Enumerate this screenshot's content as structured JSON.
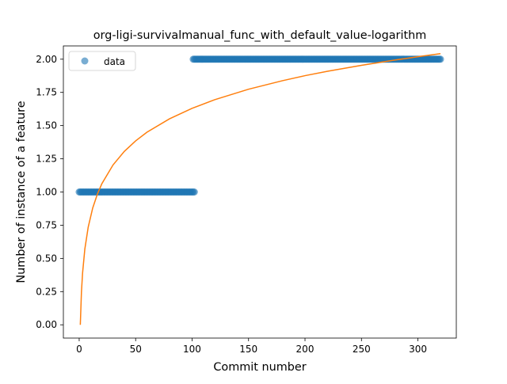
{
  "chart_data": {
    "type": "scatter",
    "title": "org-ligi-survivalmanual_func_with_default_value-logarithm",
    "xlabel": "Commit number",
    "ylabel": "Number of instance of a feature",
    "xlim": [
      -14,
      334
    ],
    "ylim": [
      -0.1,
      2.1
    ],
    "x_ticks": [
      0,
      50,
      100,
      150,
      200,
      250,
      300
    ],
    "y_ticks": [
      0.0,
      0.25,
      0.5,
      0.75,
      1.0,
      1.25,
      1.5,
      1.75,
      2.0
    ],
    "x_tick_labels": [
      "0",
      "50",
      "100",
      "150",
      "200",
      "250",
      "300"
    ],
    "y_tick_labels": [
      "0.00",
      "0.25",
      "0.50",
      "0.75",
      "1.00",
      "1.25",
      "1.50",
      "1.75",
      "2.00"
    ],
    "grid": false,
    "legend": {
      "placement": "top-left",
      "entries": [
        "data"
      ]
    },
    "series": [
      {
        "name": "data",
        "kind": "scatter",
        "color": "#1f77b4",
        "segments": [
          {
            "x_start": 0,
            "x_end": 102,
            "y": 1
          },
          {
            "x_start": 101,
            "x_end": 320,
            "y": 2
          }
        ]
      },
      {
        "kind": "line",
        "color": "#ff7f0e",
        "x": [
          1,
          2,
          3,
          5,
          8,
          12,
          16,
          20,
          30,
          40,
          50,
          60,
          80,
          100,
          120,
          150,
          180,
          200,
          220,
          250,
          280,
          300,
          320
        ],
        "y": [
          0.0,
          0.245,
          0.389,
          0.57,
          0.736,
          0.88,
          0.981,
          1.061,
          1.204,
          1.306,
          1.385,
          1.45,
          1.551,
          1.63,
          1.695,
          1.774,
          1.838,
          1.876,
          1.909,
          1.954,
          1.994,
          2.019,
          2.042
        ]
      }
    ]
  }
}
